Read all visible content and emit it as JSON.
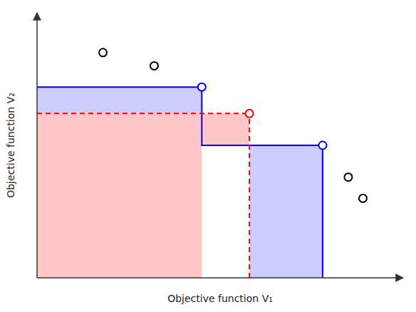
{
  "chart_data": {
    "type": "scatter",
    "xlabel": "Objective function V₁",
    "ylabel": "Objective function V₂",
    "xlim": [
      0,
      10
    ],
    "ylim": [
      0,
      10
    ],
    "tick_labels": false,
    "series": [
      {
        "color": "#0000FF",
        "x": [
          4.5,
          7.8
        ],
        "values": [
          7.2,
          5.0
        ]
      },
      {
        "color": "#FF0000",
        "x": [
          5.8
        ],
        "values": [
          6.2
        ]
      },
      {
        "color": "#000000",
        "x": [
          1.8,
          3.2,
          8.5,
          8.9
        ],
        "values": [
          8.5,
          8.0,
          3.8,
          3.0
        ]
      }
    ]
  }
}
